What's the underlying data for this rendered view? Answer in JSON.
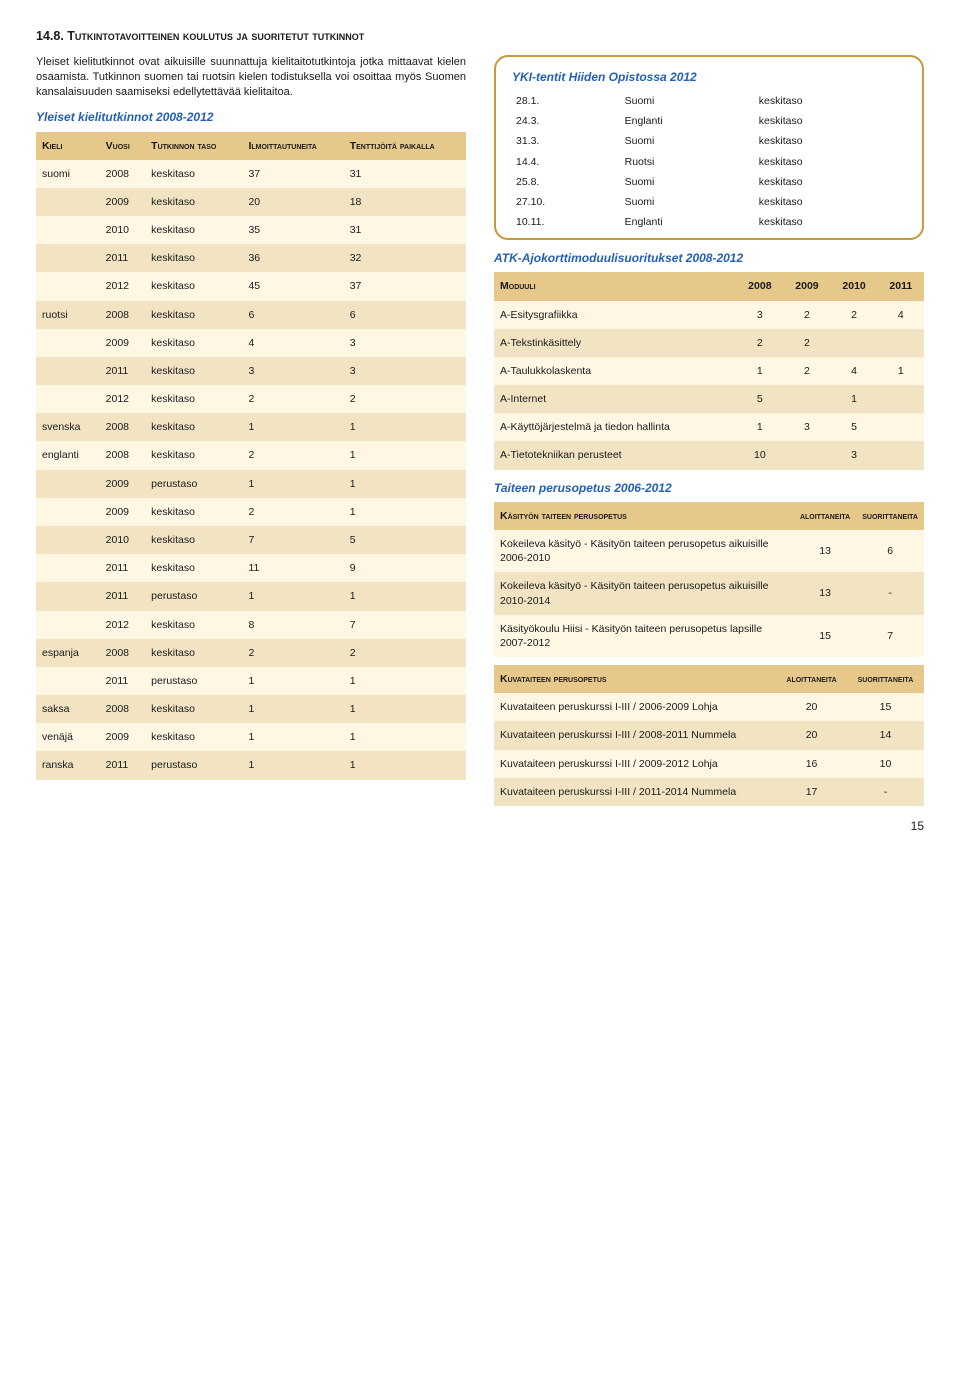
{
  "heading": "14.8. Tutkintotavoitteinen koulutus ja suoritetut tutkinnot",
  "body_paragraph": "Yleiset kielitutkinnot ovat aikuisille suunnattuja kielitaitotutkintoja jotka mittaavat kielen osaamista. Tutkinnon suomen tai ruotsin kielen todistuksella voi osoittaa myös Suomen kansalaisuuden saamiseksi edellytettävää kielitaitoa.",
  "sub_kt": "Yleiset kielitutkinnot 2008-2012",
  "kt_headers": [
    "Kieli",
    "Vuosi",
    "Tutkinnon taso",
    "Ilmoittautuneita",
    "Tenttijöitä paikalla"
  ],
  "kt_rows": [
    [
      "suomi",
      "2008",
      "keskitaso",
      "37",
      "31"
    ],
    [
      "",
      "2009",
      "keskitaso",
      "20",
      "18"
    ],
    [
      "",
      "2010",
      "keskitaso",
      "35",
      "31"
    ],
    [
      "",
      "2011",
      "keskitaso",
      "36",
      "32"
    ],
    [
      "",
      "2012",
      "keskitaso",
      "45",
      "37"
    ],
    [
      "ruotsi",
      "2008",
      "keskitaso",
      "6",
      "6"
    ],
    [
      "",
      "2009",
      "keskitaso",
      "4",
      "3"
    ],
    [
      "",
      "2011",
      "keskitaso",
      "3",
      "3"
    ],
    [
      "",
      "2012",
      "keskitaso",
      "2",
      "2"
    ],
    [
      "svenska",
      "2008",
      "keskitaso",
      "1",
      "1"
    ],
    [
      "englanti",
      "2008",
      "keskitaso",
      "2",
      "1"
    ],
    [
      "",
      "2009",
      "perustaso",
      "1",
      "1"
    ],
    [
      "",
      "2009",
      "keskitaso",
      "2",
      "1"
    ],
    [
      "",
      "2010",
      "keskitaso",
      "7",
      "5"
    ],
    [
      "",
      "2011",
      "keskitaso",
      "11",
      "9"
    ],
    [
      "",
      "2011",
      "perustaso",
      "1",
      "1"
    ],
    [
      "",
      "2012",
      "keskitaso",
      "8",
      "7"
    ],
    [
      "espanja",
      "2008",
      "keskitaso",
      "2",
      "2"
    ],
    [
      "",
      "2011",
      "perustaso",
      "1",
      "1"
    ],
    [
      "saksa",
      "2008",
      "keskitaso",
      "1",
      "1"
    ],
    [
      "venäjä",
      "2009",
      "keskitaso",
      "1",
      "1"
    ],
    [
      "ranska",
      "2011",
      "perustaso",
      "1",
      "1"
    ]
  ],
  "yki_title": "YKI-tentit Hiiden Opistossa 2012",
  "yki_rows": [
    [
      "28.1.",
      "Suomi",
      "keskitaso"
    ],
    [
      "24.3.",
      "Englanti",
      "keskitaso"
    ],
    [
      "31.3.",
      "Suomi",
      "keskitaso"
    ],
    [
      "14.4.",
      "Ruotsi",
      "keskitaso"
    ],
    [
      "25.8.",
      "Suomi",
      "keskitaso"
    ],
    [
      "27.10.",
      "Suomi",
      "keskitaso"
    ],
    [
      "10.11.",
      "Englanti",
      "keskitaso"
    ]
  ],
  "atk_title": "ATK-Ajokorttimoduulisuoritukset 2008-2012",
  "atk_headers": [
    "Moduuli",
    "2008",
    "2009",
    "2010",
    "2011"
  ],
  "atk_rows": [
    [
      "A-Esitysgrafiikka",
      "3",
      "2",
      "2",
      "4"
    ],
    [
      "A-Tekstinkäsittely",
      "2",
      "2",
      "",
      ""
    ],
    [
      "A-Taulukkolaskenta",
      "1",
      "2",
      "4",
      "1"
    ],
    [
      "A-Internet",
      "5",
      "",
      "1",
      ""
    ],
    [
      "A-Käyttöjärjestelmä ja tiedon hallinta",
      "1",
      "3",
      "5",
      ""
    ],
    [
      "A-Tietotekniikan perusteet",
      "10",
      "",
      "3",
      ""
    ]
  ],
  "taide_title": "Taiteen perusopetus 2006-2012",
  "kasityo_header": [
    "Käsityön taiteen perusopetus",
    "aloittaneita",
    "suorittaneita"
  ],
  "kasityo_rows": [
    [
      "Kokeileva käsityö - Käsityön taiteen perusopetus aikuisille 2006-2010",
      "13",
      "6"
    ],
    [
      "Kokeileva käsityö - Käsityön taiteen perusopetus aikuisille 2010-2014",
      "13",
      "-"
    ],
    [
      "Käsityökoulu Hiisi - Käsityön taiteen perusopetus lapsille 2007-2012",
      "15",
      "7"
    ]
  ],
  "kuva_header": [
    "Kuvataiteen perusopetus",
    "aloittaneita",
    "suorittaneita"
  ],
  "kuva_rows": [
    [
      "Kuvataiteen peruskurssi I-III / 2006-2009 Lohja",
      "20",
      "15"
    ],
    [
      "Kuvataiteen peruskurssi I-III / 2008-2011 Nummela",
      "20",
      "14"
    ],
    [
      "Kuvataiteen peruskurssi I-III / 2009-2012 Lohja",
      "16",
      "10"
    ],
    [
      "Kuvataiteen peruskurssi I-III / 2011-2014 Nummela",
      "17",
      "-"
    ]
  ],
  "page_number": "15"
}
